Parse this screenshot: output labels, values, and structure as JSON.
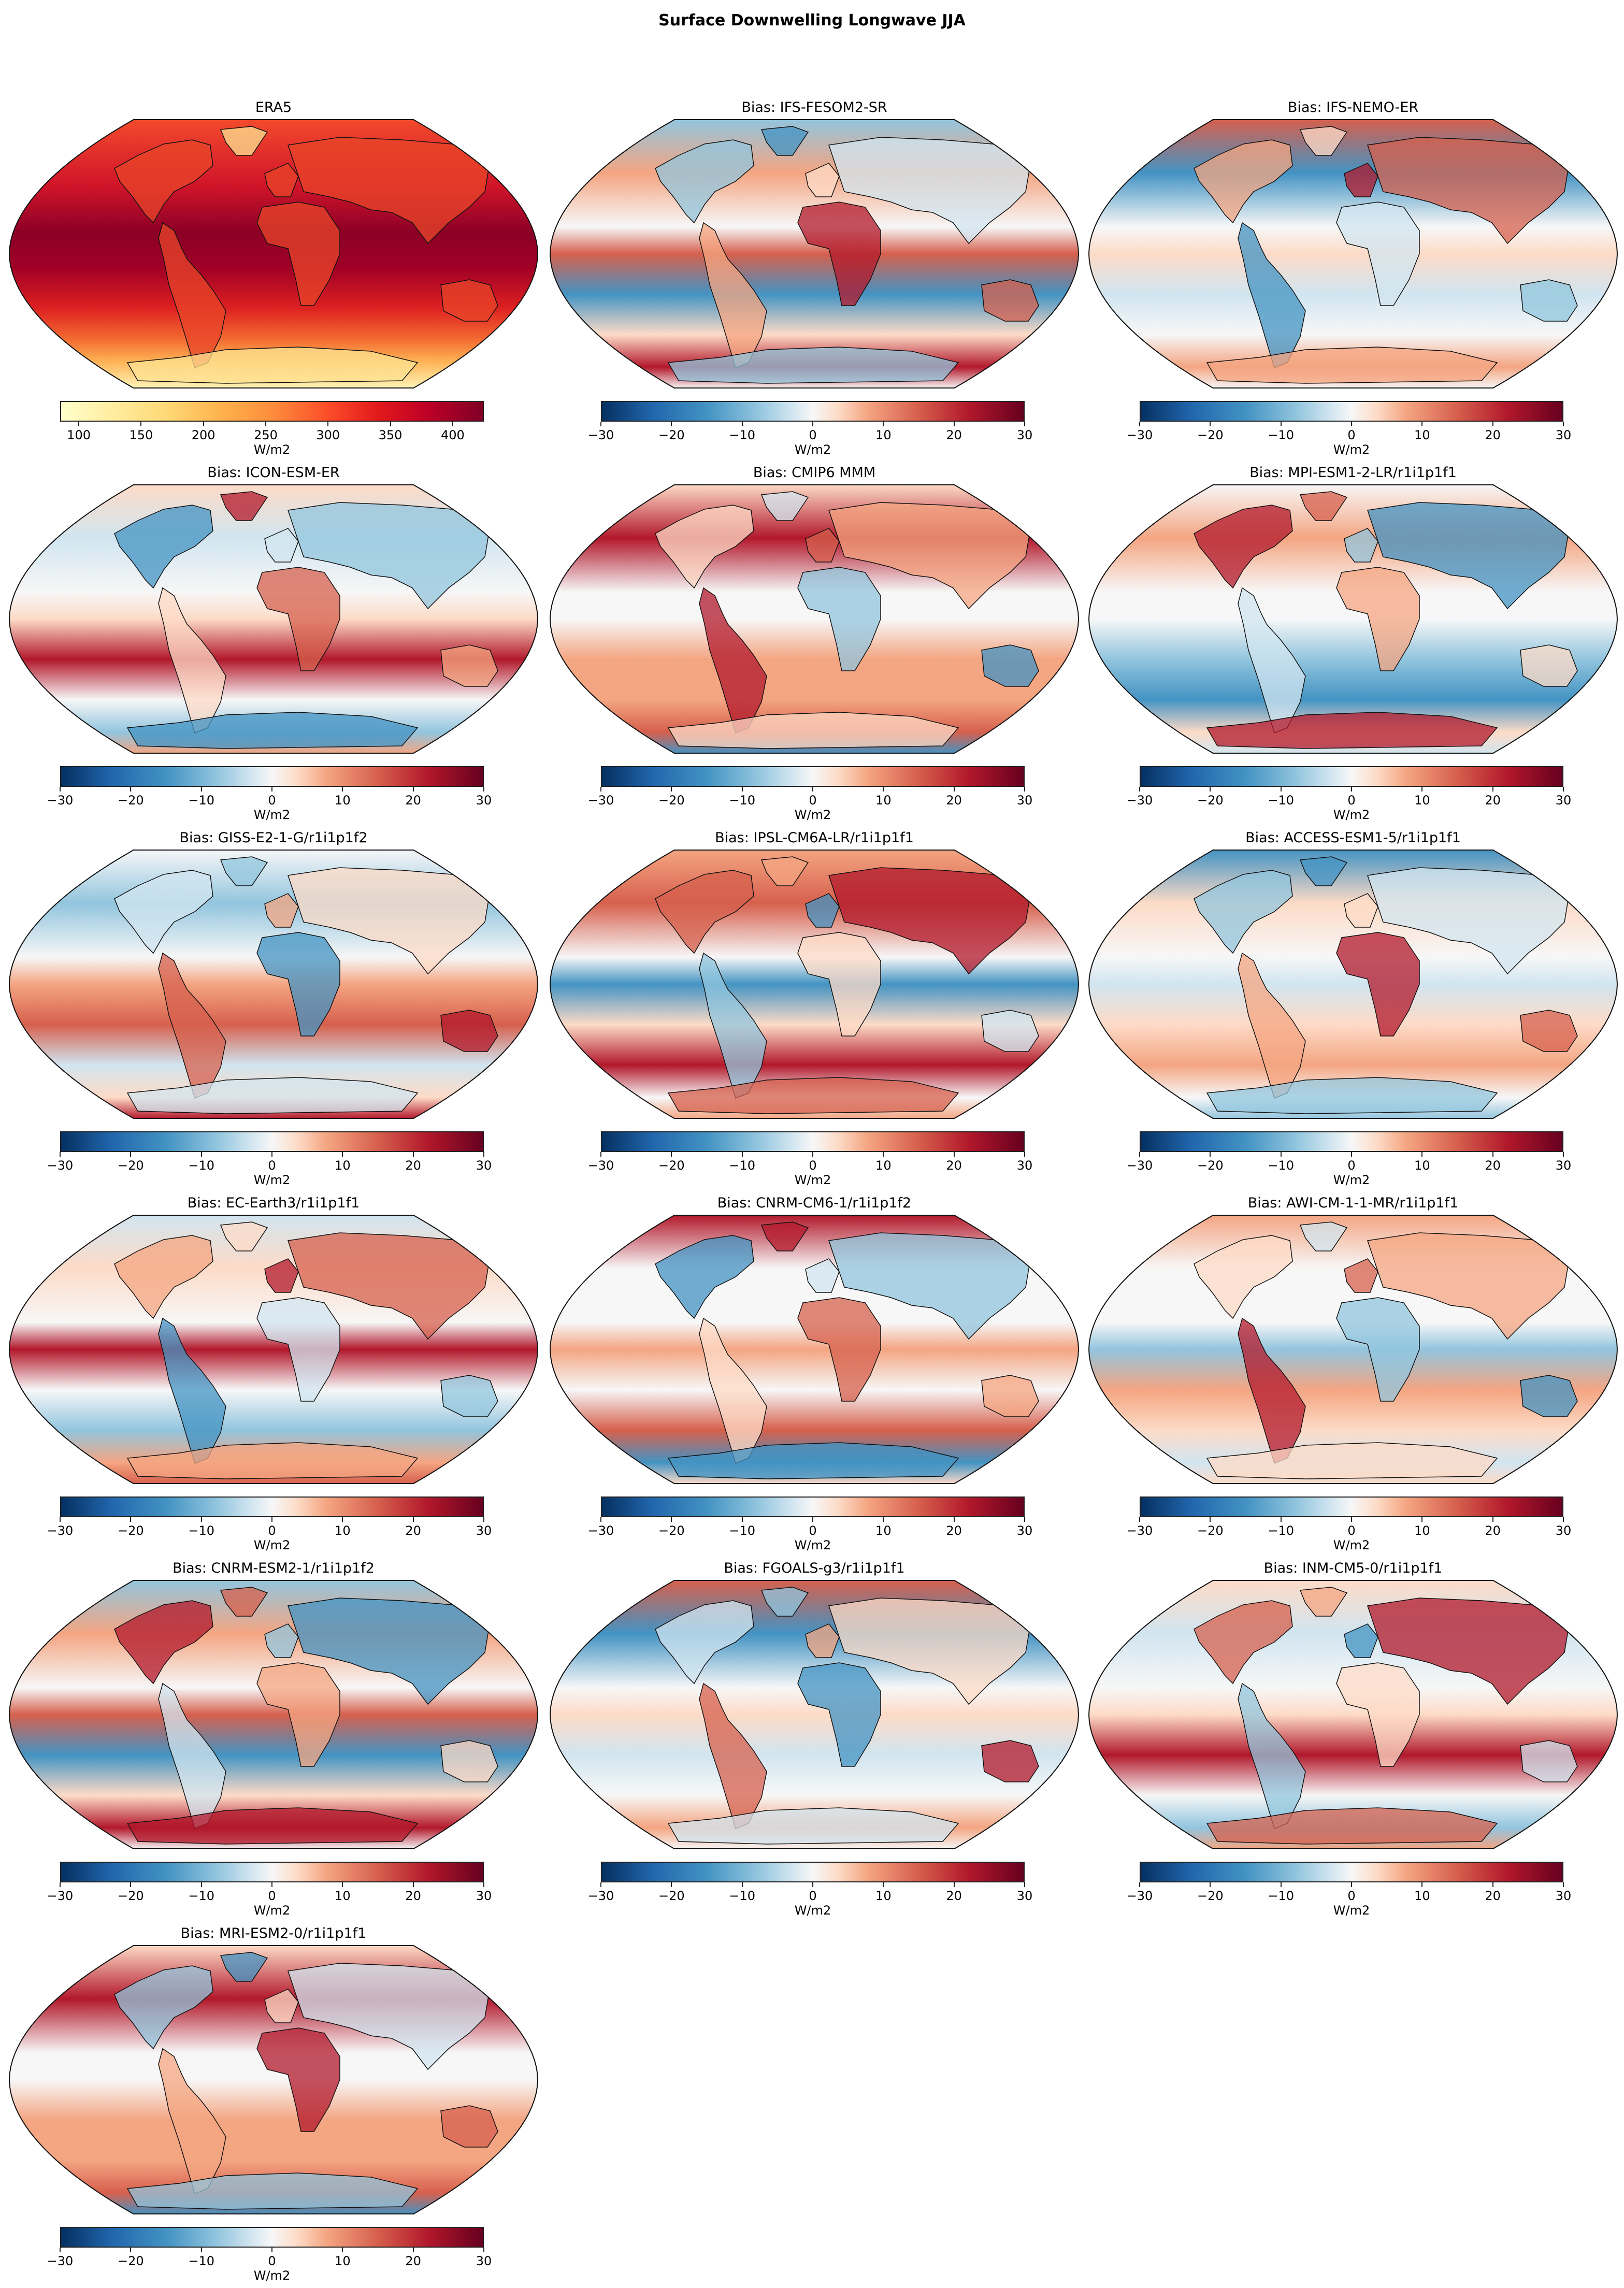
{
  "figure": {
    "title": "Surface Downwelling Longwave JJA"
  },
  "chart_data": {
    "type": "heatmap",
    "title": "Surface Downwelling Longwave JJA",
    "projection": "Robinson (global maps with coastlines)",
    "layout": {
      "rows": 6,
      "cols": 3,
      "panels": 16
    },
    "reference": {
      "title": "ERA5",
      "colormap": "YlOrRd",
      "colorbar_label": "W/m2",
      "range": [
        85,
        425
      ],
      "ticks": [
        100,
        150,
        200,
        250,
        300,
        350,
        400
      ]
    },
    "bias_colorbar": {
      "colormap": "RdBu_r",
      "colorbar_label": "W/m2",
      "range": [
        -30,
        30
      ],
      "ticks": [
        -30,
        -20,
        -10,
        0,
        10,
        20,
        30
      ]
    },
    "panels": [
      {
        "title": "ERA5",
        "kind": "reference"
      },
      {
        "title": "Bias: IFS-FESOM2-SR",
        "kind": "bias"
      },
      {
        "title": "Bias: IFS-NEMO-ER",
        "kind": "bias"
      },
      {
        "title": "Bias: ICON-ESM-ER",
        "kind": "bias"
      },
      {
        "title": "Bias: CMIP6 MMM",
        "kind": "bias"
      },
      {
        "title": "Bias: MPI-ESM1-2-LR/r1i1p1f1",
        "kind": "bias"
      },
      {
        "title": "Bias: GISS-E2-1-G/r1i1p1f2",
        "kind": "bias"
      },
      {
        "title": "Bias: IPSL-CM6A-LR/r1i1p1f1",
        "kind": "bias"
      },
      {
        "title": "Bias: ACCESS-ESM1-5/r1i1p1f1",
        "kind": "bias"
      },
      {
        "title": "Bias: EC-Earth3/r1i1p1f1",
        "kind": "bias"
      },
      {
        "title": "Bias: CNRM-CM6-1/r1i1p1f2",
        "kind": "bias"
      },
      {
        "title": "Bias: AWI-CM-1-1-MR/r1i1p1f1",
        "kind": "bias"
      },
      {
        "title": "Bias: CNRM-ESM2-1/r1i1p1f2",
        "kind": "bias"
      },
      {
        "title": "Bias: FGOALS-g3/r1i1p1f1",
        "kind": "bias"
      },
      {
        "title": "Bias: INM-CM5-0/r1i1p1f1",
        "kind": "bias"
      },
      {
        "title": "Bias: MRI-ESM2-0/r1i1p1f1",
        "kind": "bias"
      }
    ]
  }
}
